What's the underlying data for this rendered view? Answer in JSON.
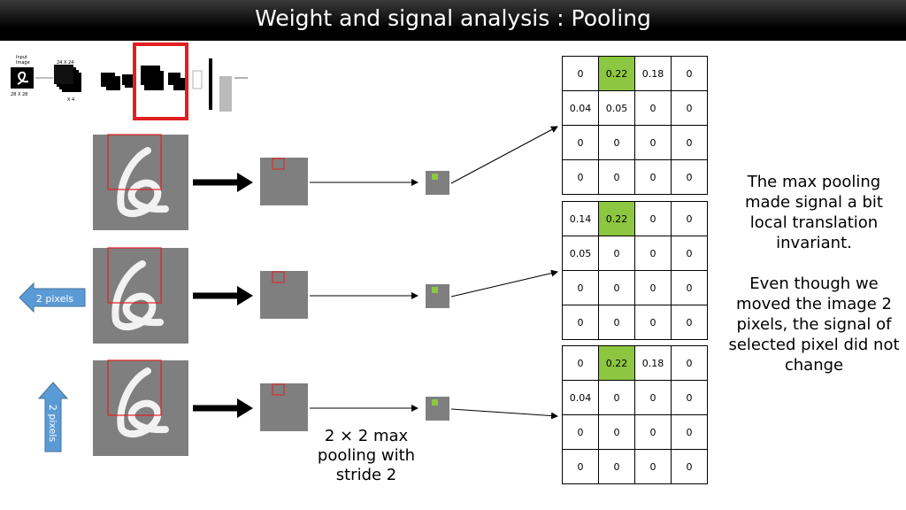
{
  "title": "Weight and signal analysis : Pooling",
  "thumbnail": {
    "input_label": "Input\nImage",
    "input_size": "28 X 28",
    "feature_size": "24 X 24",
    "feature_count": "X 4"
  },
  "side_arrows": {
    "left": "2 pixels",
    "up": "2 pixels"
  },
  "caption": "2 × 2 max\npooling with\nstride 2",
  "notes": {
    "p1": "The max pooling made signal a bit local translation invariant.",
    "p2": "Even though we moved the image 2 pixels, the signal of selected pixel did not change"
  },
  "tables": [
    [
      [
        "0",
        "0.22",
        "0.18",
        "0"
      ],
      [
        "0.04",
        "0.05",
        "0",
        "0"
      ],
      [
        "0",
        "0",
        "0",
        "0"
      ],
      [
        "0",
        "0",
        "0",
        "0"
      ]
    ],
    [
      [
        "0.14",
        "0.22",
        "0",
        "0"
      ],
      [
        "0.05",
        "0",
        "0",
        "0"
      ],
      [
        "0",
        "0",
        "0",
        "0"
      ],
      [
        "0",
        "0",
        "0",
        "0"
      ]
    ],
    [
      [
        "0",
        "0.22",
        "0.18",
        "0"
      ],
      [
        "0.04",
        "0",
        "0",
        "0"
      ],
      [
        "0",
        "0",
        "0",
        "0"
      ],
      [
        "0",
        "0",
        "0",
        "0"
      ]
    ]
  ],
  "highlight_cell": [
    0,
    1
  ],
  "colors": {
    "highlight": "#8dc640",
    "selection": "#e02020",
    "arrow_blue": "#5b9bd5",
    "digit_bg": "#7f7f7f"
  }
}
